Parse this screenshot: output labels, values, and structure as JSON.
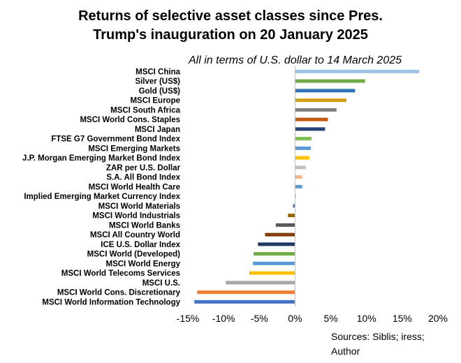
{
  "title_line1": "Returns of selective asset classes since Pres.",
  "title_line2": "Trump's inauguration on 20 January 2025",
  "subtitle": "All in terms of U.S. dollar to 14 March 2025",
  "sources_line1": "Sources: Siblis; iress;",
  "sources_line2": "Author",
  "chart_data": {
    "type": "bar",
    "orientation": "horizontal",
    "xlim": [
      -15,
      20
    ],
    "x_ticks": [
      -15,
      -10,
      -5,
      0,
      5,
      10,
      15,
      20
    ],
    "x_tick_labels": [
      "-15%",
      "-10%",
      "-5%",
      "0%",
      "5%",
      "10%",
      "15%",
      "20%"
    ],
    "grid": false,
    "legend": "none",
    "bars": [
      {
        "label": "MSCI China",
        "value": 17.4,
        "color": "#9dc3e6"
      },
      {
        "label": "Silver (US$)",
        "value": 9.8,
        "color": "#70ad47"
      },
      {
        "label": "Gold (US$)",
        "value": 8.4,
        "color": "#2e75b6"
      },
      {
        "label": "MSCI Europe",
        "value": 7.2,
        "color": "#d4a017"
      },
      {
        "label": "MSCI South Africa",
        "value": 5.8,
        "color": "#808080"
      },
      {
        "label": "MSCI World Cons. Staples",
        "value": 4.6,
        "color": "#c55a11"
      },
      {
        "label": "MSCI Japan",
        "value": 4.2,
        "color": "#264478"
      },
      {
        "label": "FTSE G7 Government Bond Index",
        "value": 2.3,
        "color": "#7fbf50"
      },
      {
        "label": "MSCI Emerging Markets",
        "value": 2.2,
        "color": "#5b9bd5"
      },
      {
        "label": "J.P. Morgan Emerging Market Bond Index",
        "value": 2.0,
        "color": "#ffc000"
      },
      {
        "label": "ZAR per U.S. Dollar",
        "value": 1.5,
        "color": "#bfbfbf"
      },
      {
        "label": "S.A. All Bond Index",
        "value": 1.0,
        "color": "#f4b183"
      },
      {
        "label": "MSCI World Health Care",
        "value": 1.0,
        "color": "#5b9bd5"
      },
      {
        "label": "Implied Emerging Market Currency Index",
        "value": 0.1,
        "color": "#70ad47"
      },
      {
        "label": "MSCI World Materials",
        "value": -0.3,
        "color": "#4472c4"
      },
      {
        "label": "MSCI World Industrials",
        "value": -1.0,
        "color": "#9c6500"
      },
      {
        "label": "MSCI World Banks",
        "value": -2.7,
        "color": "#595959"
      },
      {
        "label": "MSCI All Country World",
        "value": -4.2,
        "color": "#843c0c"
      },
      {
        "label": "ICE U.S. Dollar Index",
        "value": -5.2,
        "color": "#1f3864"
      },
      {
        "label": "MSCI World (Developed)",
        "value": -5.8,
        "color": "#70ad47"
      },
      {
        "label": "MSCI World Energy",
        "value": -5.9,
        "color": "#5b9bd5"
      },
      {
        "label": "MSCI World Telecoms Services",
        "value": -6.4,
        "color": "#ffc000"
      },
      {
        "label": "MSCI U.S.",
        "value": -9.7,
        "color": "#a6a6a6"
      },
      {
        "label": "MSCI World Cons. Discretionary",
        "value": -13.7,
        "color": "#ed7d31"
      },
      {
        "label": "MSCI World Information Technology",
        "value": -14.1,
        "color": "#4472c4"
      }
    ]
  }
}
